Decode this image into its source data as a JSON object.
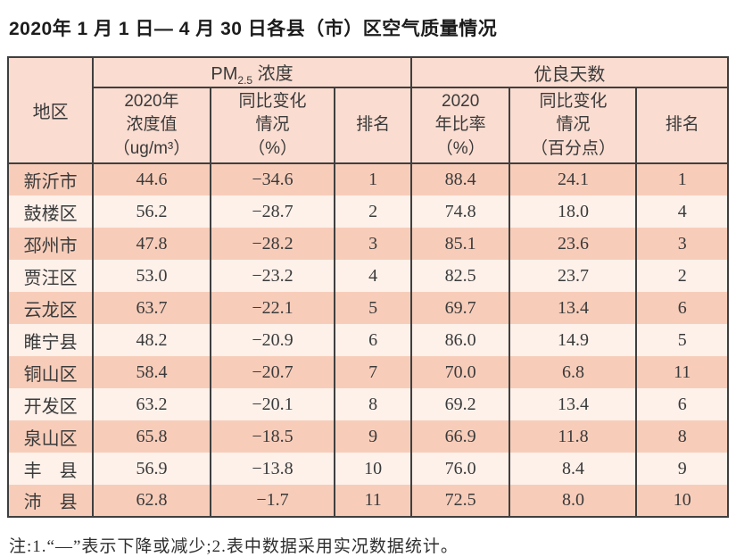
{
  "title": "2020年 1 月 1 日— 4 月 30 日各县（市）区空气质量情况",
  "table": {
    "header": {
      "region": "地区",
      "pm25": {
        "prefix": "PM",
        "sub": "2.5",
        "suffix": " 浓度"
      },
      "good_days": "优良天数",
      "sub": [
        "2020年\n浓度值\n（ug/m³）",
        "同比变化\n情况\n（%）",
        "排名",
        "2020\n年比率\n（%）",
        "同比变化\n情况\n（百分点）",
        "排名"
      ]
    },
    "rows": [
      {
        "region": "新沂市",
        "pm25_value": "44.6",
        "pm25_change": "−34.6",
        "pm25_rank": "1",
        "good_rate": "88.4",
        "good_change": "24.1",
        "good_rank": "1"
      },
      {
        "region": "鼓楼区",
        "pm25_value": "56.2",
        "pm25_change": "−28.7",
        "pm25_rank": "2",
        "good_rate": "74.8",
        "good_change": "18.0",
        "good_rank": "4"
      },
      {
        "region": "邳州市",
        "pm25_value": "47.8",
        "pm25_change": "−28.2",
        "pm25_rank": "3",
        "good_rate": "85.1",
        "good_change": "23.6",
        "good_rank": "3"
      },
      {
        "region": "贾汪区",
        "pm25_value": "53.0",
        "pm25_change": "−23.2",
        "pm25_rank": "4",
        "good_rate": "82.5",
        "good_change": "23.7",
        "good_rank": "2"
      },
      {
        "region": "云龙区",
        "pm25_value": "63.7",
        "pm25_change": "−22.1",
        "pm25_rank": "5",
        "good_rate": "69.7",
        "good_change": "13.4",
        "good_rank": "6"
      },
      {
        "region": "睢宁县",
        "pm25_value": "48.2",
        "pm25_change": "−20.9",
        "pm25_rank": "6",
        "good_rate": "86.0",
        "good_change": "14.9",
        "good_rank": "5"
      },
      {
        "region": "铜山区",
        "pm25_value": "58.4",
        "pm25_change": "−20.7",
        "pm25_rank": "7",
        "good_rate": "70.0",
        "good_change": "6.8",
        "good_rank": "11"
      },
      {
        "region": "开发区",
        "pm25_value": "63.2",
        "pm25_change": "−20.1",
        "pm25_rank": "8",
        "good_rate": "69.2",
        "good_change": "13.4",
        "good_rank": "6"
      },
      {
        "region": "泉山区",
        "pm25_value": "65.8",
        "pm25_change": "−18.5",
        "pm25_rank": "9",
        "good_rate": "66.9",
        "good_change": "11.8",
        "good_rank": "8"
      },
      {
        "region": "丰　县",
        "pm25_value": "56.9",
        "pm25_change": "−13.8",
        "pm25_rank": "10",
        "good_rate": "76.0",
        "good_change": "8.4",
        "good_rank": "9"
      },
      {
        "region": "沛　县",
        "pm25_value": "62.8",
        "pm25_change": "−1.7",
        "pm25_rank": "11",
        "good_rate": "72.5",
        "good_change": "8.0",
        "good_rank": "10"
      }
    ]
  },
  "note": "注:1.“—”表示下降或减少;2.表中数据采用实况数据统计。",
  "colors": {
    "header_bg": "#fadcd0",
    "row_odd_bg": "#f7cdba",
    "row_even_bg": "#fdf1ea",
    "border": "#3f3f3f"
  }
}
